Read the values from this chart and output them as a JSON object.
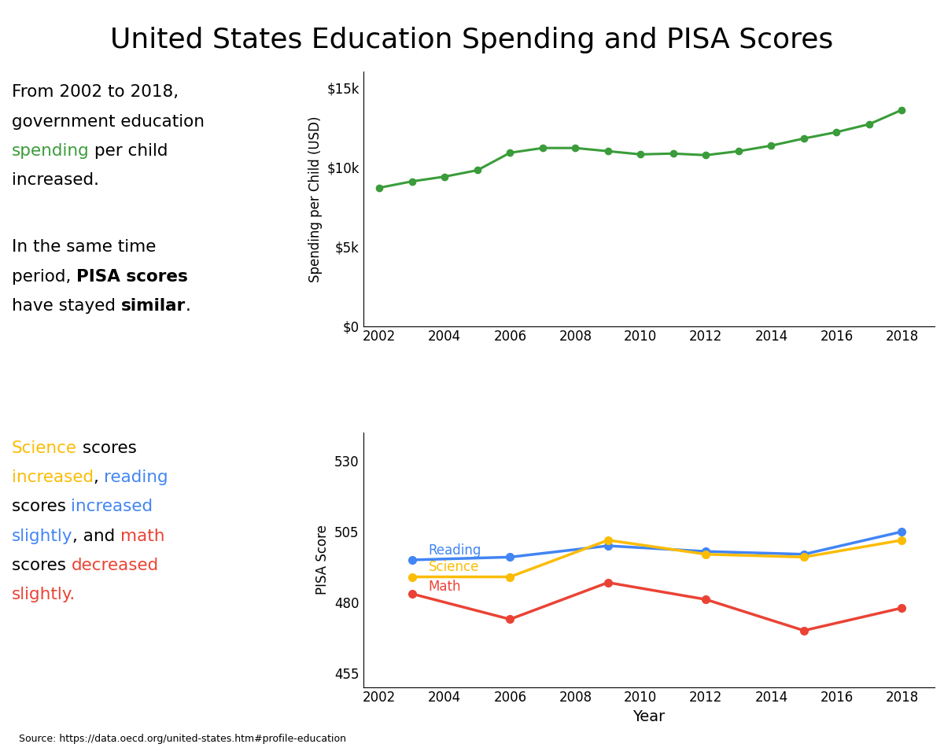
{
  "title": "United States Education Spending and PISA Scores",
  "title_fontsize": 26,
  "spending_years": [
    2002,
    2003,
    2004,
    2005,
    2006,
    2007,
    2008,
    2009,
    2010,
    2011,
    2012,
    2013,
    2014,
    2015,
    2016,
    2017,
    2018
  ],
  "spending_values": [
    8700,
    9100,
    9400,
    9800,
    10900,
    11200,
    11200,
    11000,
    10800,
    10850,
    10750,
    11000,
    11350,
    11800,
    12200,
    12700,
    13600
  ],
  "spending_color": "#3a9c3a",
  "spending_ylabel": "Spending per Child (USD)",
  "spending_yticks": [
    0,
    5000,
    10000,
    15000
  ],
  "spending_ytick_labels": [
    "$0",
    "$5k",
    "$10k",
    "$15k"
  ],
  "spending_ylim": [
    0,
    16000
  ],
  "pisa_years": [
    2003,
    2006,
    2009,
    2012,
    2015,
    2018
  ],
  "reading_scores": [
    495,
    496,
    500,
    498,
    497,
    505
  ],
  "science_scores": [
    489,
    489,
    502,
    497,
    496,
    502
  ],
  "math_scores": [
    483,
    474,
    487,
    481,
    470,
    478
  ],
  "reading_color": "#4285f4",
  "science_color": "#fbbc05",
  "math_color": "#ea4335",
  "pisa_ylabel": "PISA Score",
  "pisa_yticks": [
    455,
    480,
    505,
    530
  ],
  "pisa_ylim": [
    450,
    540
  ],
  "xlabel": "Year",
  "xticks": [
    2002,
    2004,
    2006,
    2008,
    2010,
    2012,
    2014,
    2016,
    2018
  ],
  "source_text": "Source: https://data.oecd.org/united-states.htm#profile-education",
  "lines_block1": [
    [
      {
        "text": "From 2002 to 2018,",
        "color": "black",
        "bold": false
      }
    ],
    [
      {
        "text": "government education",
        "color": "black",
        "bold": false
      }
    ],
    [
      {
        "text": "spending",
        "color": "#3a9c3a",
        "bold": false
      },
      {
        "text": " per child",
        "color": "black",
        "bold": false
      }
    ],
    [
      {
        "text": "increased.",
        "color": "black",
        "bold": false
      }
    ]
  ],
  "lines_block2": [
    [
      {
        "text": "In the same time",
        "color": "black",
        "bold": false
      }
    ],
    [
      {
        "text": "period, ",
        "color": "black",
        "bold": false
      },
      {
        "text": "PISA scores",
        "color": "black",
        "bold": true
      }
    ],
    [
      {
        "text": "have stayed ",
        "color": "black",
        "bold": false
      },
      {
        "text": "similar",
        "color": "black",
        "bold": true
      },
      {
        "text": ".",
        "color": "black",
        "bold": false
      }
    ]
  ],
  "lines_block3": [
    [
      {
        "text": "Science",
        "color": "#fbbc05",
        "bold": false
      },
      {
        "text": " scores",
        "color": "black",
        "bold": false
      }
    ],
    [
      {
        "text": "increased",
        "color": "#fbbc05",
        "bold": false
      },
      {
        "text": ", ",
        "color": "black",
        "bold": false
      },
      {
        "text": "reading",
        "color": "#4285f4",
        "bold": false
      }
    ],
    [
      {
        "text": "scores ",
        "color": "black",
        "bold": false
      },
      {
        "text": "increased",
        "color": "#4285f4",
        "bold": false
      }
    ],
    [
      {
        "text": "slightly",
        "color": "#4285f4",
        "bold": false
      },
      {
        "text": ", and ",
        "color": "black",
        "bold": false
      },
      {
        "text": "math",
        "color": "#ea4335",
        "bold": false
      }
    ],
    [
      {
        "text": "scores ",
        "color": "black",
        "bold": false
      },
      {
        "text": "decreased",
        "color": "#ea4335",
        "bold": false
      }
    ],
    [
      {
        "text": "slightly.",
        "color": "#ea4335",
        "bold": false
      }
    ]
  ]
}
